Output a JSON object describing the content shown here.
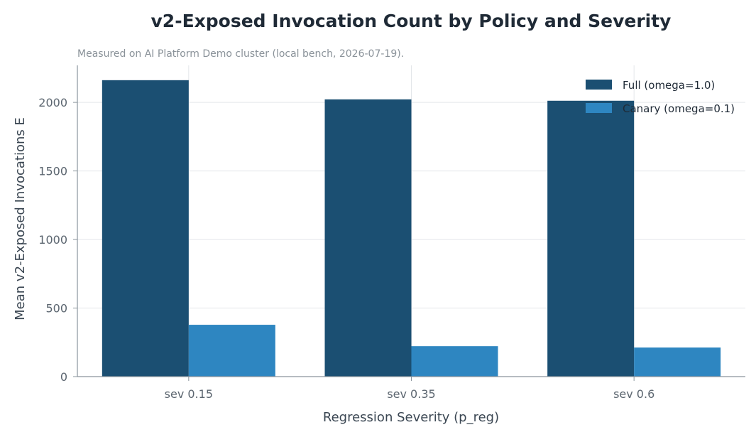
{
  "chart_data": {
    "type": "bar",
    "title": "v2-Exposed Invocation Count by Policy and Severity",
    "subtitle": "Measured on AI Platform Demo cluster (local bench, 2026-07-19).",
    "xlabel": "Regression Severity (p_reg)",
    "ylabel": "Mean v2-Exposed Invocations E",
    "categories": [
      "sev 0.15",
      "sev 0.35",
      "sev 0.6"
    ],
    "ylim": [
      0,
      2270
    ],
    "yticks": [
      0,
      500,
      1000,
      1500,
      2000
    ],
    "grid": true,
    "legend_position": "top-right",
    "series": [
      {
        "name": "Full (omega=1.0)",
        "color": "#1b4f72",
        "values": [
          2162,
          2022,
          2012
        ]
      },
      {
        "name": "Canary (omega=0.1)",
        "color": "#2e86c1",
        "values": [
          378,
          222,
          212
        ]
      }
    ]
  }
}
